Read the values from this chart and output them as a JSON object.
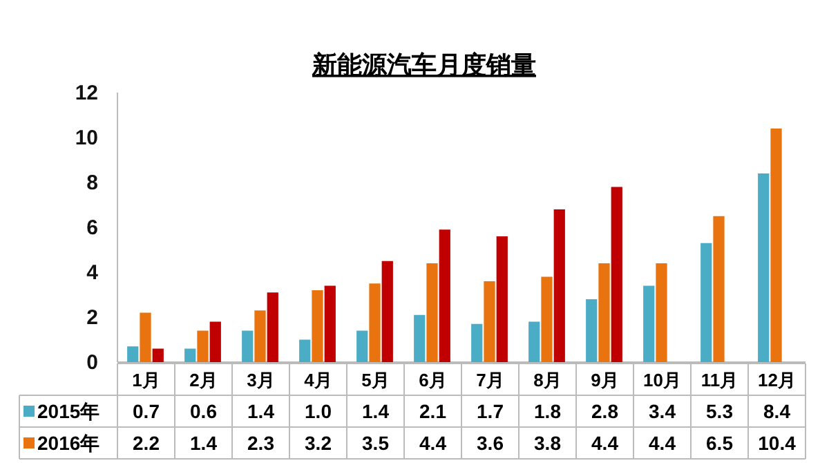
{
  "chart_data": {
    "type": "bar",
    "title": "新能源汽车月度销量",
    "categories": [
      "1月",
      "2月",
      "3月",
      "4月",
      "5月",
      "6月",
      "7月",
      "8月",
      "9月",
      "10月",
      "11月",
      "12月"
    ],
    "series": [
      {
        "name": "2015年",
        "color": "#4bacc6",
        "values": [
          0.7,
          0.6,
          1.4,
          1.0,
          1.4,
          2.1,
          1.7,
          1.8,
          2.8,
          3.4,
          5.3,
          8.4
        ],
        "value_labels": [
          "0.7",
          "0.6",
          "1.4",
          "1.0",
          "1.4",
          "2.1",
          "1.7",
          "1.8",
          "2.8",
          "3.4",
          "5.3",
          "8.4"
        ]
      },
      {
        "name": "2016年",
        "color": "#e8730f",
        "values": [
          2.2,
          1.4,
          2.3,
          3.2,
          3.5,
          4.4,
          3.6,
          3.8,
          4.4,
          4.4,
          6.5,
          10.4
        ],
        "value_labels": [
          "2.2",
          "1.4",
          "2.3",
          "3.2",
          "3.5",
          "4.4",
          "3.6",
          "3.8",
          "4.4",
          "4.4",
          "6.5",
          "10.4"
        ]
      },
      {
        "color": "#c00000",
        "values": [
          0.6,
          1.8,
          3.1,
          3.4,
          4.5,
          5.9,
          5.6,
          6.8,
          7.8,
          null,
          null,
          null
        ]
      }
    ],
    "ylim": [
      0,
      12
    ],
    "yticks": [
      0,
      2,
      4,
      6,
      8,
      10,
      12
    ],
    "grid": false,
    "legend": "bottom left"
  }
}
